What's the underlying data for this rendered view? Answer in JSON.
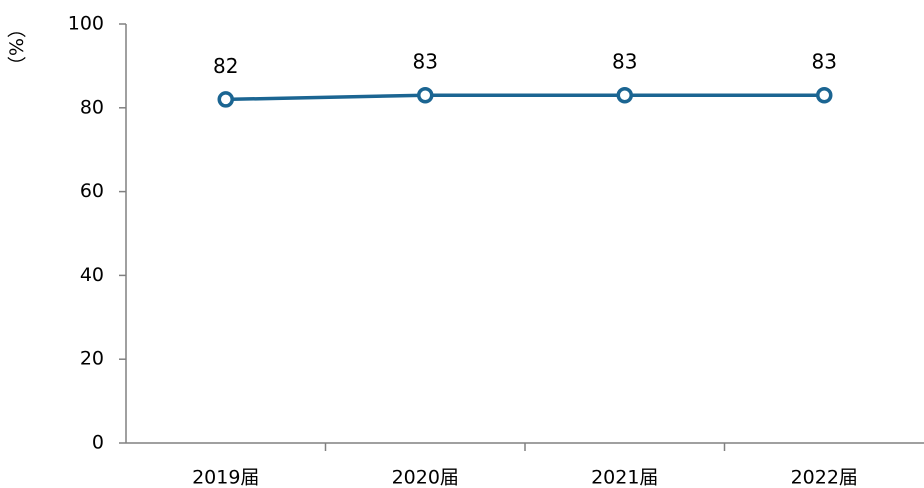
{
  "chart_data": {
    "type": "line",
    "categories": [
      "2019届",
      "2020届",
      "2021届",
      "2022届"
    ],
    "series": [
      {
        "values": [
          82,
          83,
          83,
          83
        ]
      }
    ],
    "data_labels": [
      "82",
      "83",
      "83",
      "83"
    ],
    "ylabel": "（%）",
    "ylim": [
      0,
      100
    ],
    "yticks": [
      "0",
      "20",
      "40",
      "60",
      "80",
      "100"
    ],
    "grid": false,
    "legend": "none",
    "colors": {
      "line": "#1b6592",
      "marker_fill": "#ffffff"
    }
  }
}
